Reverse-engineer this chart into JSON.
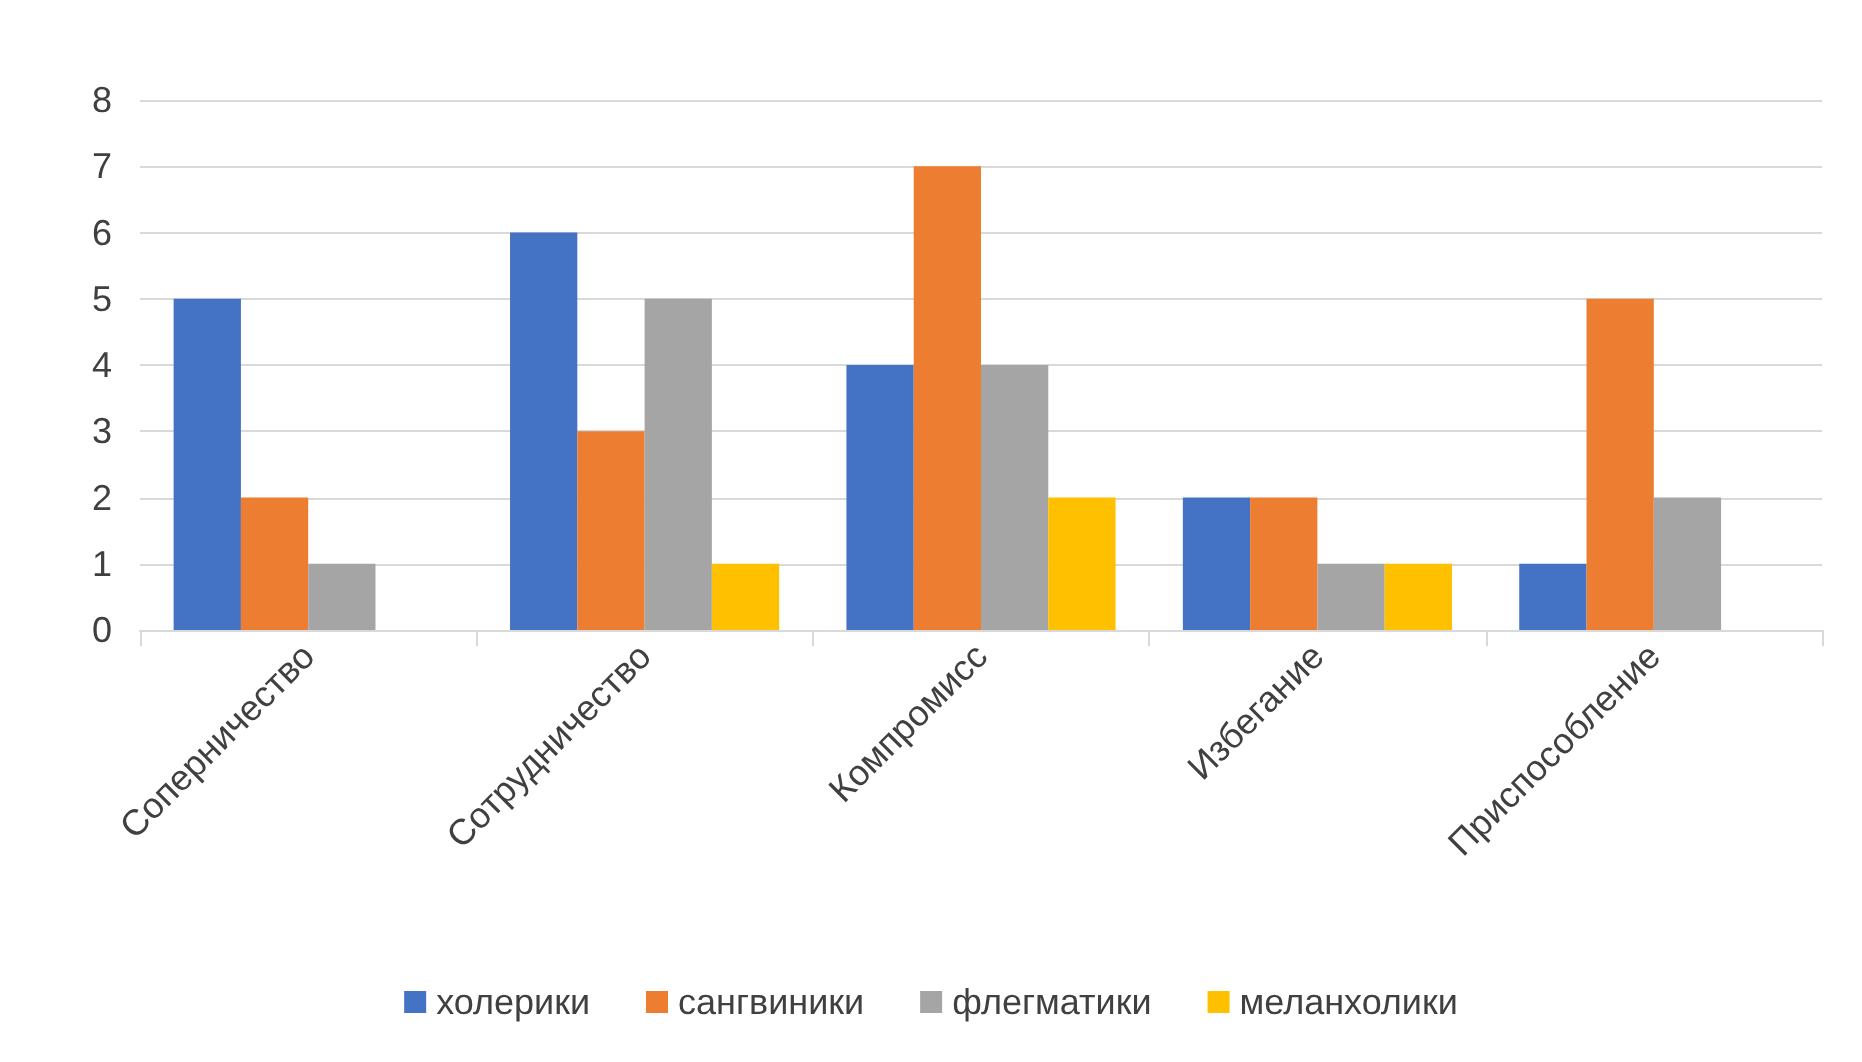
{
  "chart_data": {
    "type": "bar",
    "categories": [
      "Соперничество",
      "Сотрудничество",
      "Компромисс",
      "Избегание",
      "Приспособление"
    ],
    "series": [
      {
        "name": "холерики",
        "color": "#4472c4",
        "values": [
          5,
          6,
          4,
          2,
          1
        ]
      },
      {
        "name": "сангвиники",
        "color": "#ed7d31",
        "values": [
          2,
          3,
          7,
          2,
          5
        ]
      },
      {
        "name": "флегматики",
        "color": "#a5a5a5",
        "values": [
          1,
          5,
          4,
          1,
          2
        ]
      },
      {
        "name": "меланхолики",
        "color": "#ffc000",
        "values": [
          0,
          1,
          2,
          1,
          0
        ]
      }
    ],
    "ylim": [
      0,
      8
    ],
    "yticks": [
      0,
      1,
      2,
      3,
      4,
      5,
      6,
      7,
      8
    ],
    "grid": "y",
    "legend": "bottom"
  }
}
